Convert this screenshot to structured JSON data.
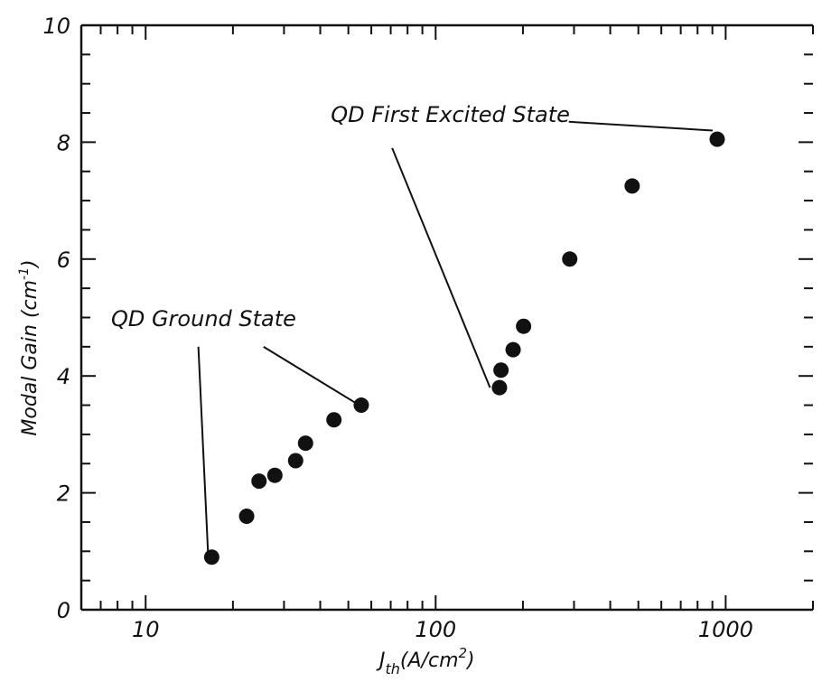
{
  "chart_data": {
    "type": "scatter",
    "x_scale": "log",
    "xlim": [
      6,
      2000
    ],
    "ylim": [
      0,
      10
    ],
    "x_ticks": [
      {
        "value": 10,
        "label": "10"
      },
      {
        "value": 100,
        "label": "100"
      },
      {
        "value": 1000,
        "label": "1000"
      }
    ],
    "y_ticks": [
      {
        "value": 0,
        "label": "0"
      },
      {
        "value": 2,
        "label": "2"
      },
      {
        "value": 4,
        "label": "4"
      },
      {
        "value": 6,
        "label": "6"
      },
      {
        "value": 8,
        "label": "8"
      },
      {
        "value": 10,
        "label": "10"
      }
    ],
    "xlabel": {
      "main": "J",
      "sub": "th",
      "unit_open": "(A/cm",
      "sup": "2",
      "unit_close": ")"
    },
    "ylabel": "Modal Gain (cm^-1)",
    "grid": false,
    "points": [
      {
        "x": 16.9,
        "y": 0.9
      },
      {
        "x": 22.3,
        "y": 1.6
      },
      {
        "x": 24.6,
        "y": 2.2
      },
      {
        "x": 27.9,
        "y": 2.3
      },
      {
        "x": 32.9,
        "y": 2.55
      },
      {
        "x": 35.6,
        "y": 2.85
      },
      {
        "x": 44.6,
        "y": 3.25
      },
      {
        "x": 55.4,
        "y": 3.5
      },
      {
        "x": 166,
        "y": 3.8
      },
      {
        "x": 168,
        "y": 4.1
      },
      {
        "x": 185,
        "y": 4.45
      },
      {
        "x": 201,
        "y": 4.85
      },
      {
        "x": 290,
        "y": 6.0
      },
      {
        "x": 476,
        "y": 7.25
      },
      {
        "x": 935,
        "y": 8.05
      }
    ],
    "annotations": [
      {
        "text": "QD Ground State",
        "leaders": [
          {
            "from": [
              15.2,
              4.5
            ],
            "to": [
              16.4,
              1.0
            ]
          },
          {
            "from": [
              25.5,
              4.5
            ],
            "to": [
              52.5,
              3.55
            ]
          }
        ]
      },
      {
        "text": "QD First Excited State",
        "leaders": [
          {
            "from": [
              70.8,
              7.9
            ],
            "to": [
              154,
              3.8
            ]
          },
          {
            "from": [
              288,
              8.35
            ],
            "to": [
              902,
              8.2
            ]
          }
        ]
      }
    ]
  }
}
